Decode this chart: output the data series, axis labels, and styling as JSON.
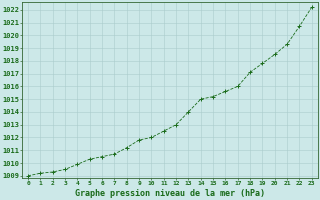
{
  "x": [
    0,
    1,
    2,
    3,
    4,
    5,
    6,
    7,
    8,
    9,
    10,
    11,
    12,
    13,
    14,
    15,
    16,
    17,
    18,
    19,
    20,
    21,
    22,
    23
  ],
  "y": [
    1009.0,
    1009.2,
    1009.3,
    1009.5,
    1009.9,
    1010.3,
    1010.5,
    1010.7,
    1011.2,
    1011.8,
    1012.0,
    1012.5,
    1013.0,
    1014.0,
    1015.0,
    1015.2,
    1015.6,
    1016.0,
    1017.1,
    1017.8,
    1018.5,
    1019.3,
    1020.7,
    1022.2
  ],
  "line_color": "#1a6b1a",
  "marker": "+",
  "marker_color": "#1a6b1a",
  "bg_color": "#cce8e8",
  "grid_color": "#aacccc",
  "xlabel": "Graphe pression niveau de la mer (hPa)",
  "xlabel_fontsize": 6.0,
  "ylabel_ticks": [
    1009,
    1010,
    1011,
    1012,
    1013,
    1014,
    1015,
    1016,
    1017,
    1018,
    1019,
    1020,
    1021,
    1022
  ],
  "xlim": [
    -0.5,
    23.5
  ],
  "ylim": [
    1008.8,
    1022.6
  ],
  "xticks": [
    0,
    1,
    2,
    3,
    4,
    5,
    6,
    7,
    8,
    9,
    10,
    11,
    12,
    13,
    14,
    15,
    16,
    17,
    18,
    19,
    20,
    21,
    22,
    23
  ],
  "ytick_fontsize": 5.0,
  "xtick_fontsize": 4.5,
  "tick_color": "#1a6b1a",
  "linewidth": 0.6,
  "markersize": 2.5,
  "markeredgewidth": 0.7
}
